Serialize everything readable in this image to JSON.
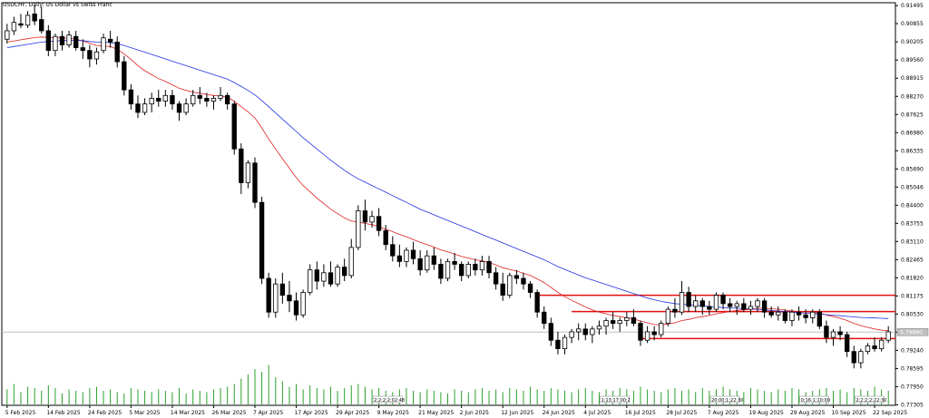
{
  "chart_title": "USDCHF, Daily:  US Dollar vs Swiss Franc",
  "chart_data": {
    "type": "candlestick",
    "symbol": "USDCHF",
    "timeframe": "Daily",
    "description": "US Dollar vs Swiss Franc",
    "ylim": [
      0.77287,
      0.91598
    ],
    "y_ticks": [
      "0.91495",
      "0.90855",
      "0.90205",
      "0.89560",
      "0.88915",
      "0.88270",
      "0.87625",
      "0.86980",
      "0.86335",
      "0.85690",
      "0.85046",
      "0.84400",
      "0.83755",
      "0.83110",
      "0.82465",
      "0.81820",
      "0.81175",
      "0.80530",
      "0.79885",
      "0.79240",
      "0.78595",
      "0.77950",
      "0.77305"
    ],
    "x_ticks": [
      "5 Feb 2025",
      "14 Feb 2025",
      "24 Feb 2025",
      "5 Mar 2025",
      "14 Mar 2025",
      "26 Mar 2025",
      "7 Apr 2025",
      "17 Apr 2025",
      "29 Apr 2025",
      "9 May 2025",
      "21 May 2025",
      "2 Jun 2025",
      "12 Jun 2025",
      "24 Jun 2025",
      "4 Jul 2025",
      "16 Jul 2025",
      "28 Jul 2025",
      "7 Aug 2025",
      "19 Aug 2025",
      "29 Aug 2025",
      "10 Sep 2025",
      "22 Sep 2025"
    ],
    "current_price": "0.79890",
    "ohlc": [
      [
        0.903,
        0.9085,
        0.9015,
        0.906
      ],
      [
        0.906,
        0.911,
        0.9045,
        0.909
      ],
      [
        0.9085,
        0.912,
        0.907,
        0.908
      ],
      [
        0.908,
        0.913,
        0.907,
        0.9115
      ],
      [
        0.912,
        0.915,
        0.908,
        0.9095
      ],
      [
        0.91,
        0.9145,
        0.905,
        0.906
      ],
      [
        0.906,
        0.908,
        0.897,
        0.899
      ],
      [
        0.899,
        0.905,
        0.897,
        0.904
      ],
      [
        0.904,
        0.906,
        0.899,
        0.901
      ],
      [
        0.901,
        0.906,
        0.9,
        0.9045
      ],
      [
        0.904,
        0.906,
        0.899,
        0.9
      ],
      [
        0.9,
        0.903,
        0.896,
        0.899
      ],
      [
        0.899,
        0.901,
        0.893,
        0.896
      ],
      [
        0.896,
        0.9,
        0.894,
        0.8985
      ],
      [
        0.899,
        0.905,
        0.898,
        0.9035
      ],
      [
        0.903,
        0.906,
        0.9,
        0.902
      ],
      [
        0.902,
        0.904,
        0.893,
        0.895
      ],
      [
        0.895,
        0.897,
        0.883,
        0.885
      ],
      [
        0.885,
        0.887,
        0.878,
        0.88
      ],
      [
        0.88,
        0.883,
        0.875,
        0.877
      ],
      [
        0.877,
        0.882,
        0.876,
        0.88
      ],
      [
        0.88,
        0.884,
        0.877,
        0.882
      ],
      [
        0.882,
        0.885,
        0.879,
        0.881
      ],
      [
        0.881,
        0.885,
        0.879,
        0.883
      ],
      [
        0.883,
        0.885,
        0.878,
        0.88
      ],
      [
        0.88,
        0.881,
        0.874,
        0.877
      ],
      [
        0.877,
        0.882,
        0.876,
        0.88
      ],
      [
        0.88,
        0.885,
        0.879,
        0.883
      ],
      [
        0.883,
        0.886,
        0.88,
        0.882
      ],
      [
        0.882,
        0.884,
        0.879,
        0.881
      ],
      [
        0.881,
        0.883,
        0.878,
        0.882
      ],
      [
        0.882,
        0.886,
        0.881,
        0.883
      ],
      [
        0.883,
        0.884,
        0.878,
        0.88
      ],
      [
        0.88,
        0.881,
        0.862,
        0.864
      ],
      [
        0.864,
        0.866,
        0.848,
        0.852
      ],
      [
        0.852,
        0.86,
        0.85,
        0.859
      ],
      [
        0.859,
        0.861,
        0.843,
        0.845
      ],
      [
        0.845,
        0.847,
        0.816,
        0.818
      ],
      [
        0.818,
        0.82,
        0.804,
        0.806
      ],
      [
        0.806,
        0.818,
        0.804,
        0.816
      ],
      [
        0.816,
        0.82,
        0.809,
        0.812
      ],
      [
        0.812,
        0.817,
        0.806,
        0.81
      ],
      [
        0.81,
        0.813,
        0.803,
        0.805
      ],
      [
        0.805,
        0.814,
        0.804,
        0.813
      ],
      [
        0.813,
        0.823,
        0.812,
        0.821
      ],
      [
        0.821,
        0.824,
        0.814,
        0.817
      ],
      [
        0.817,
        0.823,
        0.815,
        0.82
      ],
      [
        0.82,
        0.824,
        0.815,
        0.816
      ],
      [
        0.816,
        0.823,
        0.815,
        0.822
      ],
      [
        0.822,
        0.825,
        0.817,
        0.819
      ],
      [
        0.819,
        0.832,
        0.818,
        0.829
      ],
      [
        0.829,
        0.844,
        0.828,
        0.842
      ],
      [
        0.842,
        0.846,
        0.835,
        0.838
      ],
      [
        0.838,
        0.842,
        0.836,
        0.84
      ],
      [
        0.84,
        0.843,
        0.833,
        0.835
      ],
      [
        0.835,
        0.837,
        0.828,
        0.83
      ],
      [
        0.83,
        0.833,
        0.824,
        0.826
      ],
      [
        0.826,
        0.83,
        0.822,
        0.824
      ],
      [
        0.824,
        0.829,
        0.822,
        0.828
      ],
      [
        0.828,
        0.831,
        0.823,
        0.825
      ],
      [
        0.825,
        0.828,
        0.819,
        0.821
      ],
      [
        0.821,
        0.828,
        0.82,
        0.826
      ],
      [
        0.826,
        0.829,
        0.821,
        0.823
      ],
      [
        0.823,
        0.825,
        0.816,
        0.818
      ],
      [
        0.818,
        0.825,
        0.817,
        0.824
      ],
      [
        0.824,
        0.827,
        0.821,
        0.823
      ],
      [
        0.823,
        0.824,
        0.817,
        0.819
      ],
      [
        0.819,
        0.824,
        0.818,
        0.823
      ],
      [
        0.823,
        0.825,
        0.819,
        0.821
      ],
      [
        0.821,
        0.826,
        0.819,
        0.824
      ],
      [
        0.824,
        0.826,
        0.818,
        0.82
      ],
      [
        0.82,
        0.822,
        0.814,
        0.816
      ],
      [
        0.816,
        0.82,
        0.81,
        0.812
      ],
      [
        0.812,
        0.82,
        0.811,
        0.819
      ],
      [
        0.819,
        0.821,
        0.816,
        0.818
      ],
      [
        0.818,
        0.82,
        0.814,
        0.816
      ],
      [
        0.816,
        0.817,
        0.811,
        0.813
      ],
      [
        0.813,
        0.814,
        0.804,
        0.806
      ],
      [
        0.806,
        0.808,
        0.8,
        0.802
      ],
      [
        0.802,
        0.804,
        0.794,
        0.796
      ],
      [
        0.796,
        0.799,
        0.791,
        0.793
      ],
      [
        0.793,
        0.798,
        0.791,
        0.797
      ],
      [
        0.797,
        0.8,
        0.795,
        0.799
      ],
      [
        0.799,
        0.802,
        0.796,
        0.8
      ],
      [
        0.8,
        0.802,
        0.796,
        0.798
      ],
      [
        0.798,
        0.801,
        0.795,
        0.8
      ],
      [
        0.8,
        0.803,
        0.798,
        0.801
      ],
      [
        0.801,
        0.804,
        0.798,
        0.803
      ],
      [
        0.803,
        0.806,
        0.8,
        0.802
      ],
      [
        0.802,
        0.804,
        0.799,
        0.803
      ],
      [
        0.803,
        0.806,
        0.801,
        0.804
      ],
      [
        0.804,
        0.807,
        0.801,
        0.802
      ],
      [
        0.802,
        0.803,
        0.794,
        0.796
      ],
      [
        0.796,
        0.801,
        0.795,
        0.799
      ],
      [
        0.799,
        0.801,
        0.796,
        0.798
      ],
      [
        0.798,
        0.803,
        0.797,
        0.802
      ],
      [
        0.802,
        0.808,
        0.801,
        0.807
      ],
      [
        0.807,
        0.811,
        0.804,
        0.806
      ],
      [
        0.806,
        0.817,
        0.805,
        0.813
      ],
      [
        0.813,
        0.815,
        0.806,
        0.808
      ],
      [
        0.808,
        0.812,
        0.806,
        0.81
      ],
      [
        0.81,
        0.811,
        0.805,
        0.808
      ],
      [
        0.808,
        0.81,
        0.805,
        0.807
      ],
      [
        0.807,
        0.813,
        0.806,
        0.812
      ],
      [
        0.812,
        0.813,
        0.807,
        0.809
      ],
      [
        0.809,
        0.811,
        0.806,
        0.808
      ],
      [
        0.808,
        0.81,
        0.805,
        0.809
      ],
      [
        0.809,
        0.811,
        0.806,
        0.807
      ],
      [
        0.807,
        0.81,
        0.805,
        0.808
      ],
      [
        0.808,
        0.811,
        0.806,
        0.81
      ],
      [
        0.81,
        0.811,
        0.804,
        0.806
      ],
      [
        0.806,
        0.808,
        0.804,
        0.805
      ],
      [
        0.805,
        0.808,
        0.803,
        0.806
      ],
      [
        0.806,
        0.807,
        0.802,
        0.803
      ],
      [
        0.803,
        0.807,
        0.801,
        0.806
      ],
      [
        0.806,
        0.808,
        0.803,
        0.805
      ],
      [
        0.805,
        0.807,
        0.802,
        0.804
      ],
      [
        0.804,
        0.807,
        0.802,
        0.806
      ],
      [
        0.806,
        0.807,
        0.8,
        0.801
      ],
      [
        0.801,
        0.803,
        0.795,
        0.797
      ],
      [
        0.797,
        0.8,
        0.794,
        0.799
      ],
      [
        0.799,
        0.801,
        0.796,
        0.798
      ],
      [
        0.798,
        0.799,
        0.79,
        0.792
      ],
      [
        0.792,
        0.794,
        0.786,
        0.788
      ],
      [
        0.788,
        0.793,
        0.786,
        0.792
      ],
      [
        0.792,
        0.795,
        0.791,
        0.794
      ],
      [
        0.794,
        0.797,
        0.792,
        0.793
      ],
      [
        0.793,
        0.797,
        0.792,
        0.796
      ],
      [
        0.796,
        0.801,
        0.795,
        0.799
      ]
    ],
    "volume": [
      22,
      30,
      18,
      26,
      24,
      20,
      28,
      24,
      16,
      22,
      20,
      18,
      24,
      26,
      20,
      22,
      18,
      16,
      24,
      22,
      20,
      18,
      22,
      20,
      18,
      24,
      16,
      22,
      20,
      18,
      22,
      24,
      26,
      30,
      38,
      44,
      52,
      48,
      58,
      40,
      34,
      26,
      30,
      22,
      28,
      24,
      22,
      26,
      20,
      24,
      28,
      30,
      26,
      22,
      24,
      20,
      18,
      22,
      24,
      20,
      18,
      22,
      20,
      18,
      16,
      22,
      20,
      18,
      22,
      24,
      20,
      22,
      18,
      24,
      22,
      20,
      26,
      22,
      20,
      24,
      22,
      20,
      18,
      22,
      24,
      20,
      18,
      22,
      20,
      24,
      22,
      20,
      26,
      22,
      20,
      18,
      22,
      24,
      20,
      22,
      18,
      24,
      20,
      22,
      26,
      22,
      20,
      18,
      24,
      22,
      20,
      18,
      22,
      20,
      24,
      22,
      18,
      20,
      22,
      24,
      20,
      22,
      18,
      24,
      22,
      20,
      26,
      22,
      20
    ],
    "series": [
      {
        "name": "",
        "type": "moving_average",
        "color": "#e02020",
        "values": [
          0.902,
          0.9024,
          0.9028,
          0.9032,
          0.9036,
          0.9038,
          0.9036,
          0.9036,
          0.9034,
          0.9034,
          0.903,
          0.9024,
          0.9015,
          0.9008,
          0.9006,
          0.9004,
          0.8994,
          0.8978,
          0.8958,
          0.8936,
          0.8918,
          0.8904,
          0.889,
          0.888,
          0.8868,
          0.8856,
          0.8848,
          0.8842,
          0.8838,
          0.8834,
          0.883,
          0.8828,
          0.8824,
          0.881,
          0.879,
          0.8772,
          0.875,
          0.8715,
          0.8675,
          0.864,
          0.8605,
          0.8572,
          0.8538,
          0.851,
          0.8488,
          0.8465,
          0.8446,
          0.8426,
          0.841,
          0.8395,
          0.8384,
          0.838,
          0.8375,
          0.8371,
          0.8364,
          0.8355,
          0.8346,
          0.8336,
          0.8328,
          0.8318,
          0.8308,
          0.83,
          0.8291,
          0.8281,
          0.8274,
          0.8266,
          0.8258,
          0.8252,
          0.8246,
          0.8242,
          0.8236,
          0.8228,
          0.8218,
          0.8212,
          0.8206,
          0.8198,
          0.819,
          0.8178,
          0.8165,
          0.8148,
          0.813,
          0.8115,
          0.8102,
          0.809,
          0.8078,
          0.8068,
          0.806,
          0.8054,
          0.8048,
          0.8044,
          0.804,
          0.8036,
          0.8028,
          0.8022,
          0.8016,
          0.8014,
          0.8018,
          0.8022,
          0.803,
          0.8034,
          0.804,
          0.8044,
          0.8048,
          0.8054,
          0.8058,
          0.8062,
          0.8066,
          0.8068,
          0.807,
          0.8074,
          0.8074,
          0.8072,
          0.807,
          0.8067,
          0.8064,
          0.8062,
          0.806,
          0.806,
          0.8056,
          0.805,
          0.8044,
          0.8038,
          0.803,
          0.802,
          0.8012,
          0.8006,
          0.8,
          0.7996,
          0.7994
        ]
      },
      {
        "name": "",
        "type": "moving_average",
        "color": "#2030e0",
        "values": [
          0.9,
          0.9004,
          0.9008,
          0.9012,
          0.9016,
          0.902,
          0.9022,
          0.9024,
          0.9025,
          0.9026,
          0.9026,
          0.9025,
          0.9022,
          0.902,
          0.9019,
          0.9018,
          0.9014,
          0.9008,
          0.9,
          0.8992,
          0.8984,
          0.8976,
          0.8968,
          0.896,
          0.8952,
          0.8944,
          0.8936,
          0.8928,
          0.892,
          0.8912,
          0.8904,
          0.8896,
          0.8888,
          0.8876,
          0.8862,
          0.8848,
          0.8832,
          0.8812,
          0.879,
          0.8768,
          0.8746,
          0.8724,
          0.8702,
          0.868,
          0.866,
          0.864,
          0.862,
          0.86,
          0.8582,
          0.8564,
          0.8548,
          0.8534,
          0.8522,
          0.851,
          0.8498,
          0.8486,
          0.8474,
          0.8462,
          0.845,
          0.8438,
          0.8426,
          0.8416,
          0.8406,
          0.8396,
          0.8386,
          0.8376,
          0.8366,
          0.8356,
          0.8346,
          0.8336,
          0.8326,
          0.8316,
          0.8306,
          0.8296,
          0.8286,
          0.8276,
          0.8266,
          0.8256,
          0.8246,
          0.8234,
          0.8222,
          0.8212,
          0.8202,
          0.8192,
          0.8182,
          0.8174,
          0.8166,
          0.8158,
          0.815,
          0.8142,
          0.8134,
          0.8126,
          0.8118,
          0.811,
          0.8104,
          0.8098,
          0.8094,
          0.809,
          0.8088,
          0.8086,
          0.8084,
          0.8082,
          0.808,
          0.8078,
          0.8076,
          0.8075,
          0.8074,
          0.8072,
          0.8071,
          0.807,
          0.8068,
          0.8066,
          0.8064,
          0.8062,
          0.806,
          0.8058,
          0.8056,
          0.8055,
          0.8053,
          0.8051,
          0.8049,
          0.8047,
          0.8045,
          0.8043,
          0.8041,
          0.804,
          0.8039,
          0.8038,
          0.8037
        ]
      }
    ],
    "horizontal_lines": [
      {
        "value": 0.812,
        "color": "#e01010",
        "from_index": 77
      },
      {
        "value": 0.8062,
        "color": "#e01010",
        "from_index": 82
      },
      {
        "value": 0.7966,
        "color": "#e01010",
        "from_index": 92
      }
    ],
    "event_labels": [
      {
        "text": "2;2;2;2;02:48",
        "index": 55
      },
      {
        "text": "1;13;17:00;2",
        "index": 88
      },
      {
        "text": "20:00;1;22:30",
        "index": 104
      },
      {
        "text": "0;16:1;10:00",
        "index": 117
      },
      {
        "text": "2;2;2;2;22:30",
        "index": 125
      }
    ],
    "colors": {
      "up_candle": "#ffffff",
      "down_candle": "#000000",
      "candle_border": "#000000",
      "volume": "#2aa02a",
      "grid": "#d0d0d0",
      "current_price_line": "#c0c0c0"
    }
  }
}
